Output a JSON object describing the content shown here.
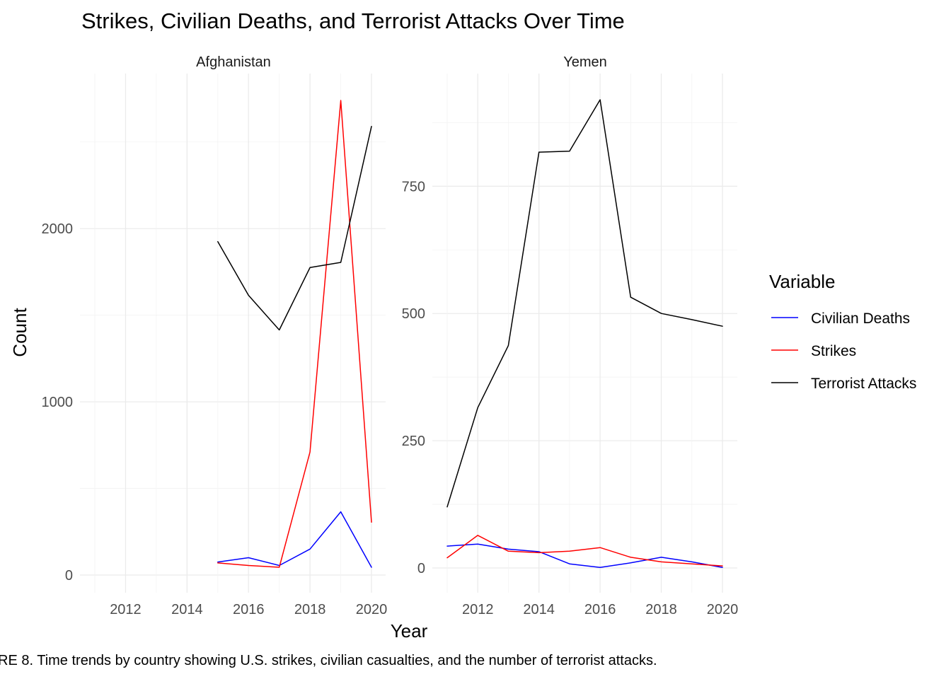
{
  "figure": {
    "title": "Strikes, Civilian Deaths, and Terrorist Attacks Over Time",
    "caption": "RE 8. Time trends by country showing U.S. strikes, civilian casualties, and the number of terrorist attacks.",
    "xlabel": "Year",
    "ylabel": "Count",
    "legend_title": "Variable"
  },
  "chart_data": [
    {
      "type": "line",
      "panel": "Afghanistan",
      "title": "Afghanistan",
      "x": [
        2015,
        2016,
        2017,
        2018,
        2019,
        2020
      ],
      "xlim": [
        2011,
        2020
      ],
      "xticks": [
        2012,
        2014,
        2016,
        2018,
        2020
      ],
      "ylim": [
        0,
        2740
      ],
      "yticks": [
        0,
        1000,
        2000
      ],
      "xlabel": "Year",
      "ylabel": "Count",
      "grid": true,
      "legend": "right",
      "series": [
        {
          "name": "Civilian Deaths",
          "color": "#0000ff",
          "values": [
            75,
            100,
            55,
            150,
            365,
            45
          ]
        },
        {
          "name": "Strikes",
          "color": "#ff0000",
          "values": [
            70,
            55,
            45,
            710,
            2740,
            305
          ]
        },
        {
          "name": "Terrorist Attacks",
          "color": "#000000",
          "values": [
            1925,
            1615,
            1415,
            1775,
            1805,
            2590
          ]
        }
      ]
    },
    {
      "type": "line",
      "panel": "Yemen",
      "title": "Yemen",
      "x": [
        2011,
        2012,
        2013,
        2014,
        2015,
        2016,
        2017,
        2018,
        2019,
        2020
      ],
      "xlim": [
        2011,
        2020
      ],
      "xticks": [
        2012,
        2014,
        2016,
        2018,
        2020
      ],
      "ylim": [
        0,
        920
      ],
      "yticks": [
        0,
        250,
        500,
        750
      ],
      "xlabel": "Year",
      "ylabel": "Count",
      "grid": true,
      "legend": "right",
      "series": [
        {
          "name": "Civilian Deaths",
          "color": "#0000ff",
          "values": [
            43,
            47,
            37,
            32,
            8,
            1,
            10,
            21,
            12,
            1
          ]
        },
        {
          "name": "Strikes",
          "color": "#ff0000",
          "values": [
            20,
            64,
            33,
            30,
            33,
            40,
            21,
            12,
            8,
            4
          ]
        },
        {
          "name": "Terrorist Attacks",
          "color": "#000000",
          "values": [
            120,
            315,
            437,
            817,
            819,
            920,
            532,
            500,
            488,
            475
          ]
        }
      ]
    }
  ],
  "legend": {
    "title": "Variable",
    "entries": [
      {
        "label": "Civilian Deaths",
        "color": "#0000ff"
      },
      {
        "label": "Strikes",
        "color": "#ff0000"
      },
      {
        "label": "Terrorist Attacks",
        "color": "#000000"
      }
    ]
  }
}
